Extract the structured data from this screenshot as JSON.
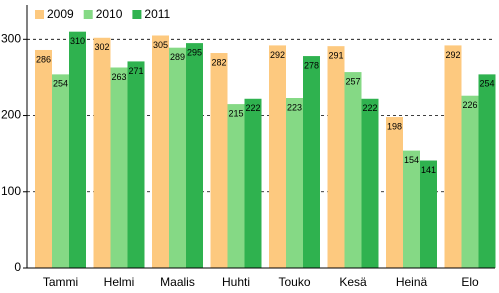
{
  "chart_data": {
    "type": "bar",
    "categories": [
      "Tammi",
      "Helmi",
      "Maalis",
      "Huhti",
      "Touko",
      "Kesä",
      "Heinä",
      "Elo"
    ],
    "series": [
      {
        "name": "2009",
        "color": "#fdc97f",
        "values": [
          286,
          302,
          305,
          282,
          292,
          291,
          198,
          292
        ]
      },
      {
        "name": "2010",
        "color": "#85d985",
        "values": [
          254,
          263,
          289,
          215,
          223,
          257,
          154,
          226
        ]
      },
      {
        "name": "2011",
        "color": "#2fb24f",
        "values": [
          310,
          271,
          295,
          222,
          278,
          222,
          141,
          254
        ]
      }
    ],
    "ylim": [
      0,
      345
    ],
    "yticks": [
      0,
      100,
      200,
      300
    ],
    "grid": true,
    "legend": "top-left"
  }
}
